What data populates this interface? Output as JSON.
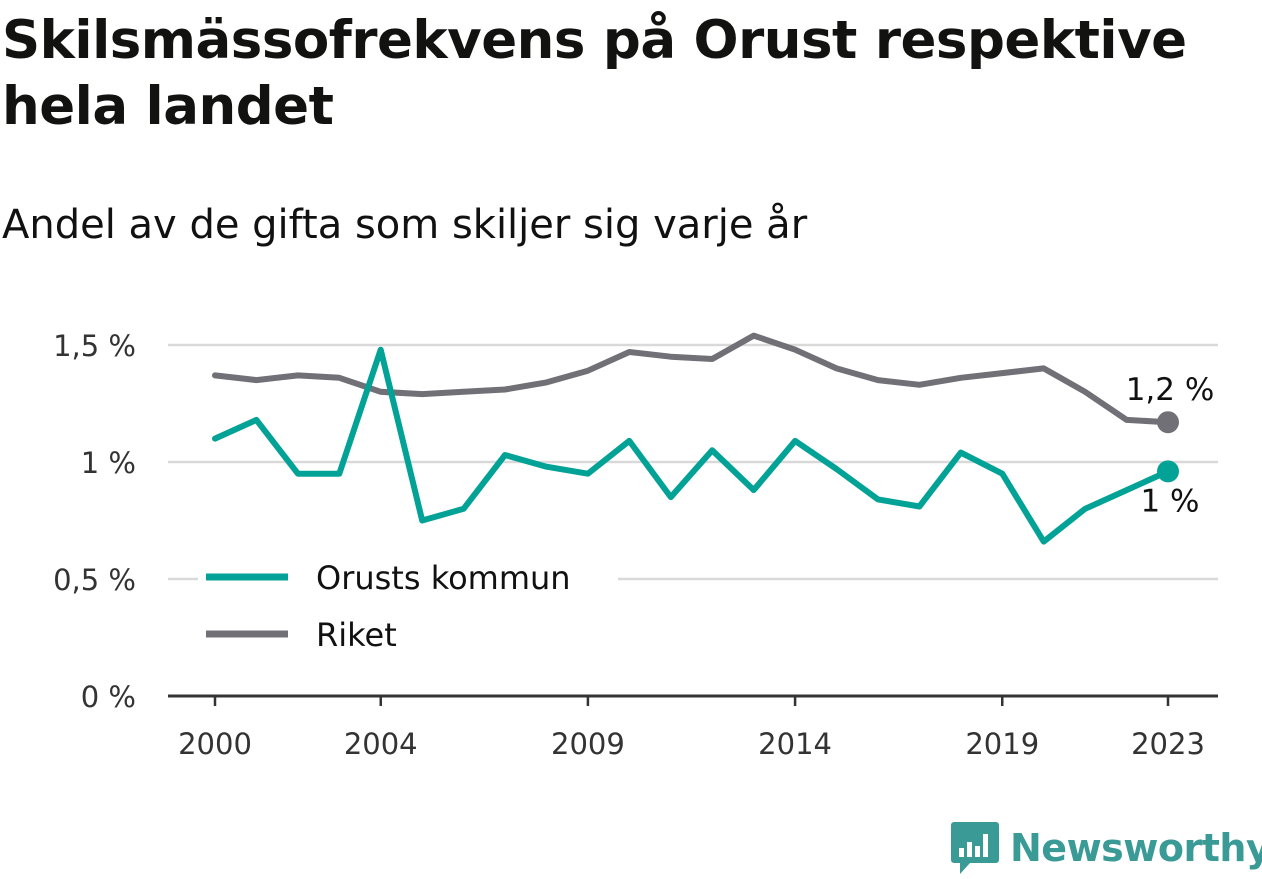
{
  "title": "Skilsmässofrekvens på Orust respektive hela landet",
  "subtitle": "Andel av de gifta som skiljer sig varje år",
  "brand": {
    "name": "Newsworthy",
    "color": "#3a9a96"
  },
  "colors": {
    "orust": "#03a297",
    "riket": "#717077",
    "grid": "#d9d9d9",
    "axis": "#333333"
  },
  "chart_data": {
    "type": "line",
    "x": [
      2000,
      2001,
      2002,
      2003,
      2004,
      2005,
      2006,
      2007,
      2008,
      2009,
      2010,
      2011,
      2012,
      2013,
      2014,
      2015,
      2016,
      2017,
      2018,
      2019,
      2020,
      2021,
      2022,
      2023
    ],
    "x_ticks": [
      2000,
      2004,
      2009,
      2014,
      2019,
      2023
    ],
    "x_tick_labels": [
      "2000",
      "2004",
      "2009",
      "2014",
      "2019",
      "2023"
    ],
    "y_ticks": [
      0,
      0.5,
      1,
      1.5
    ],
    "y_tick_labels": [
      "0 %",
      "0,5 %",
      "1 %",
      "1,5 %"
    ],
    "ylim": [
      0,
      1.5
    ],
    "grid": true,
    "legend_position": "bottom-left",
    "series": [
      {
        "name": "Orusts kommun",
        "color": "#03a297",
        "values": [
          1.1,
          1.18,
          0.95,
          0.95,
          1.48,
          0.75,
          0.8,
          1.03,
          0.98,
          0.95,
          1.09,
          0.85,
          1.05,
          0.88,
          1.09,
          0.97,
          0.84,
          0.81,
          1.04,
          0.95,
          0.66,
          0.8,
          0.88,
          0.96
        ],
        "end_label": "1 %"
      },
      {
        "name": "Riket",
        "color": "#717077",
        "values": [
          1.37,
          1.35,
          1.37,
          1.36,
          1.3,
          1.29,
          1.3,
          1.31,
          1.34,
          1.39,
          1.47,
          1.45,
          1.44,
          1.54,
          1.48,
          1.4,
          1.35,
          1.33,
          1.36,
          1.38,
          1.4,
          1.3,
          1.18,
          1.17
        ],
        "end_label": "1,2 %"
      }
    ]
  }
}
